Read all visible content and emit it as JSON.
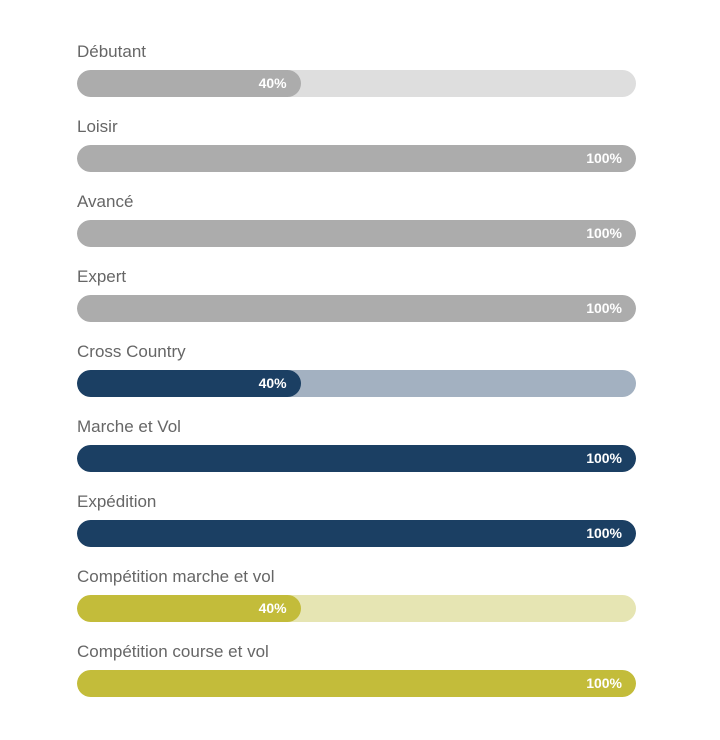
{
  "bars": [
    {
      "label": "Débutant",
      "value": 40,
      "value_label": "40%",
      "color": "#acacac",
      "track": "#dedede"
    },
    {
      "label": "Loisir",
      "value": 100,
      "value_label": "100%",
      "color": "#acacac",
      "track": "#dedede"
    },
    {
      "label": "Avancé",
      "value": 100,
      "value_label": "100%",
      "color": "#acacac",
      "track": "#dedede"
    },
    {
      "label": "Expert",
      "value": 100,
      "value_label": "100%",
      "color": "#acacac",
      "track": "#dedede"
    },
    {
      "label": "Cross Country",
      "value": 40,
      "value_label": "40%",
      "color": "#1b3f63",
      "track": "#a3b1c1"
    },
    {
      "label": "Marche et Vol",
      "value": 100,
      "value_label": "100%",
      "color": "#1b3f63",
      "track": "#a3b1c1"
    },
    {
      "label": "Expédition",
      "value": 100,
      "value_label": "100%",
      "color": "#1b3f63",
      "track": "#a3b1c1"
    },
    {
      "label": "Compétition marche et vol",
      "value": 40,
      "value_label": "40%",
      "color": "#c3bc3a",
      "track": "#e6e5b3"
    },
    {
      "label": "Compétition course et vol",
      "value": 100,
      "value_label": "100%",
      "color": "#c3bc3a",
      "track": "#e6e5b3"
    }
  ]
}
